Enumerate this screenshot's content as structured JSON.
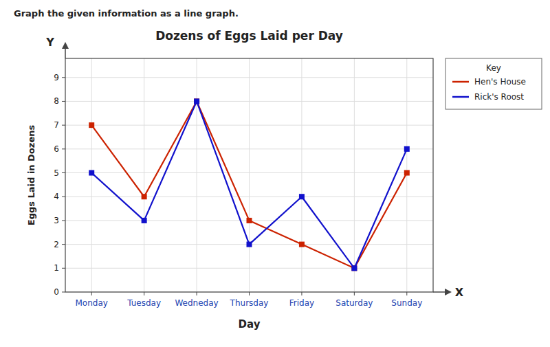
{
  "chart_data": {
    "type": "line",
    "title": "Dozens of Eggs Laid per Day",
    "x_label": "Day",
    "y_label": "Eggs Laid in Dozens",
    "annotations": [
      "Graph the given information as a line graph.",
      "Y",
      "X"
    ],
    "legend_title": "Key",
    "categories": [
      "Monday",
      "Tuesday",
      "Wedneday",
      "Thursday",
      "Friday",
      "Saturday",
      "Sunday"
    ],
    "series": [
      {
        "name": "Hen's House",
        "color": "#cc2200",
        "values": [
          7,
          4,
          8,
          3,
          2,
          1,
          5
        ]
      },
      {
        "name": "Rick's Roost",
        "color": "#1111cc",
        "values": [
          5,
          3,
          8,
          2,
          4,
          1,
          6
        ]
      }
    ],
    "ylim": [
      0,
      9.8
    ],
    "yticks": [
      0,
      1,
      2,
      3,
      4,
      5,
      6,
      7,
      8,
      9
    ],
    "grid": true,
    "legend": "upper right",
    "marker": "square"
  }
}
